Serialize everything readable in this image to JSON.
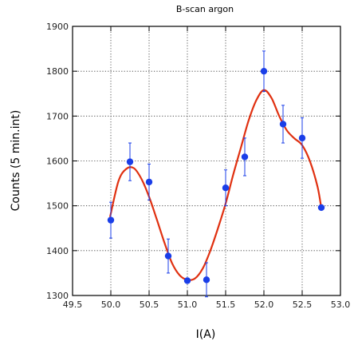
{
  "chart_data": {
    "type": "scatter",
    "title": "B-scan argon",
    "xlabel": "I(A)",
    "ylabel": "Counts (5 min.int)",
    "xlim": [
      49.5,
      53.0
    ],
    "ylim": [
      1300,
      1900
    ],
    "x_ticks": [
      49.5,
      50.0,
      50.5,
      51.0,
      51.5,
      52.0,
      52.5,
      53.0
    ],
    "x_tick_labels": [
      "49.5",
      "50.0",
      "50.5",
      "51.0",
      "51.5",
      "52.0",
      "52.5",
      "53.0"
    ],
    "y_ticks": [
      1300,
      1400,
      1500,
      1600,
      1700,
      1800,
      1900
    ],
    "y_tick_labels": [
      "1300",
      "1400",
      "1500",
      "1600",
      "1700",
      "1800",
      "1900"
    ],
    "grid": true,
    "marker_color": "#1a3ee8",
    "error_bar_color": "#1a3ee8",
    "fit_color": "#e03010",
    "series": [
      {
        "x": [
          50.0,
          50.25,
          50.5,
          50.75,
          51.0,
          51.25,
          51.5,
          51.75,
          52.0,
          52.25,
          52.5,
          52.75
        ],
        "y": [
          1468,
          1598,
          1553,
          1388,
          1333,
          1335,
          1540,
          1609,
          1800,
          1682,
          1651,
          1496
        ],
        "yerr": [
          40,
          42,
          40,
          38,
          0,
          38,
          40,
          42,
          45,
          42,
          45,
          0
        ]
      }
    ],
    "fit_curve": {
      "x": [
        49.99,
        50.1,
        50.2,
        50.3,
        50.4,
        50.5,
        50.6,
        50.7,
        50.8,
        50.9,
        51.0,
        51.1,
        51.2,
        51.3,
        51.4,
        51.5,
        51.6,
        51.7,
        51.8,
        51.9,
        52.0,
        52.1,
        52.2,
        52.3,
        52.4,
        52.5,
        52.6,
        52.7,
        52.75
      ],
      "y": [
        1475,
        1555,
        1582,
        1584,
        1560,
        1520,
        1470,
        1418,
        1372,
        1345,
        1335,
        1338,
        1360,
        1400,
        1450,
        1505,
        1570,
        1630,
        1690,
        1735,
        1758,
        1740,
        1700,
        1668,
        1650,
        1635,
        1600,
        1543,
        1495
      ]
    }
  }
}
